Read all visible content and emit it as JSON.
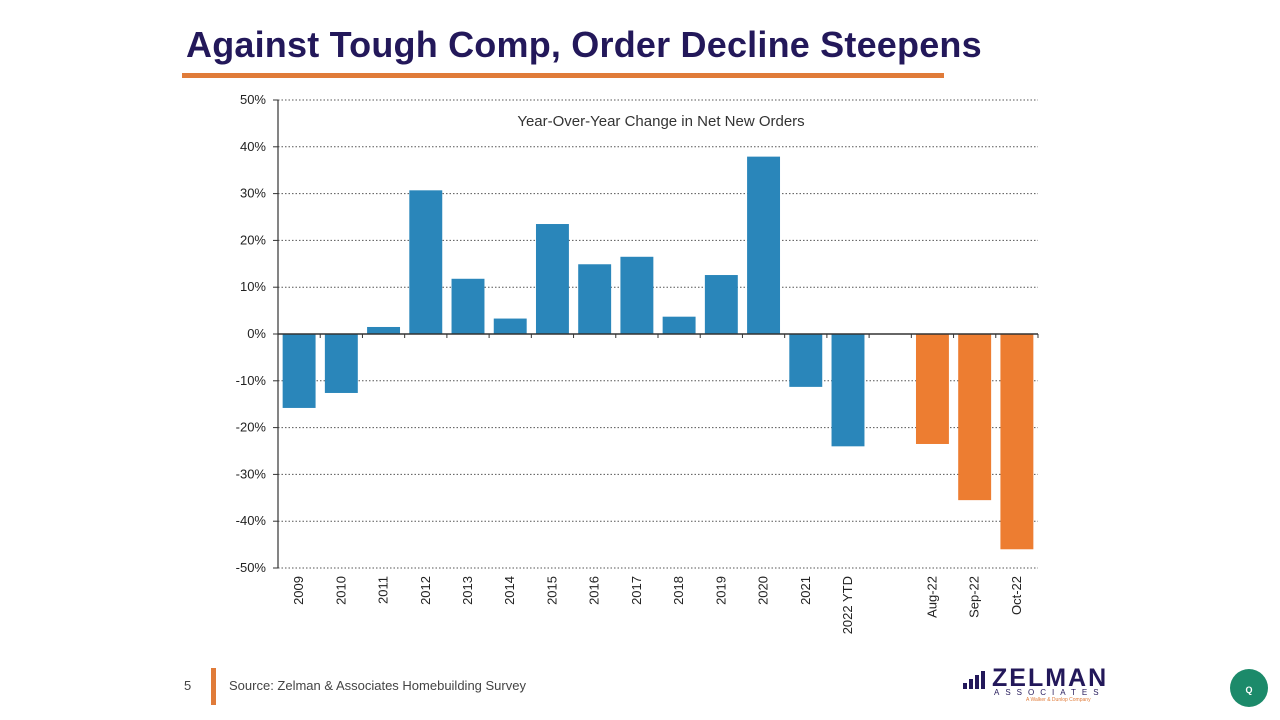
{
  "slide": {
    "title": "Against Tough Comp, Order Decline Steepens",
    "page_number": "5",
    "source": "Source: Zelman & Associates Homebuilding Survey"
  },
  "logo": {
    "name": "ZELMAN",
    "sub": "ASSOCIATES",
    "tagline": "A Walker & Dunlop Company"
  },
  "widget": {
    "icon": "chat-assistant-icon",
    "label": "Q"
  },
  "colors": {
    "title": "#23185a",
    "accent": "#e07b39",
    "annual_bar": "#2a86ba",
    "monthly_bar": "#ed7d31",
    "gridline": "#555555",
    "axis": "#333333"
  },
  "chart_data": {
    "type": "bar",
    "title": "Year-Over-Year Change in Net New Orders",
    "xlabel": "",
    "ylabel": "",
    "ylim": [
      -50,
      50
    ],
    "y_ticks": [
      50,
      40,
      30,
      20,
      10,
      0,
      -10,
      -20,
      -30,
      -40,
      -50
    ],
    "y_tick_labels": [
      "50%",
      "40%",
      "30%",
      "20%",
      "10%",
      "0%",
      "-10%",
      "-20%",
      "-30%",
      "-40%",
      "-50%"
    ],
    "value_unit": "%",
    "grid": true,
    "grid_style": "dotted horizontal",
    "legend": "none",
    "categories": [
      "2009",
      "2010",
      "2011",
      "2012",
      "2013",
      "2014",
      "2015",
      "2016",
      "2017",
      "2018",
      "2019",
      "2020",
      "2021",
      "2022 YTD",
      "",
      "Aug-22",
      "Sep-22",
      "Oct-22"
    ],
    "values": [
      -15.8,
      -12.6,
      1.5,
      30.7,
      11.8,
      3.3,
      23.5,
      14.9,
      16.5,
      3.7,
      12.6,
      37.9,
      -11.3,
      -24.0,
      null,
      -23.5,
      -35.5,
      -46.0
    ],
    "bar_colors": [
      "annual",
      "annual",
      "annual",
      "annual",
      "annual",
      "annual",
      "annual",
      "annual",
      "annual",
      "annual",
      "annual",
      "annual",
      "annual",
      "annual",
      "",
      "monthly",
      "monthly",
      "monthly"
    ]
  }
}
